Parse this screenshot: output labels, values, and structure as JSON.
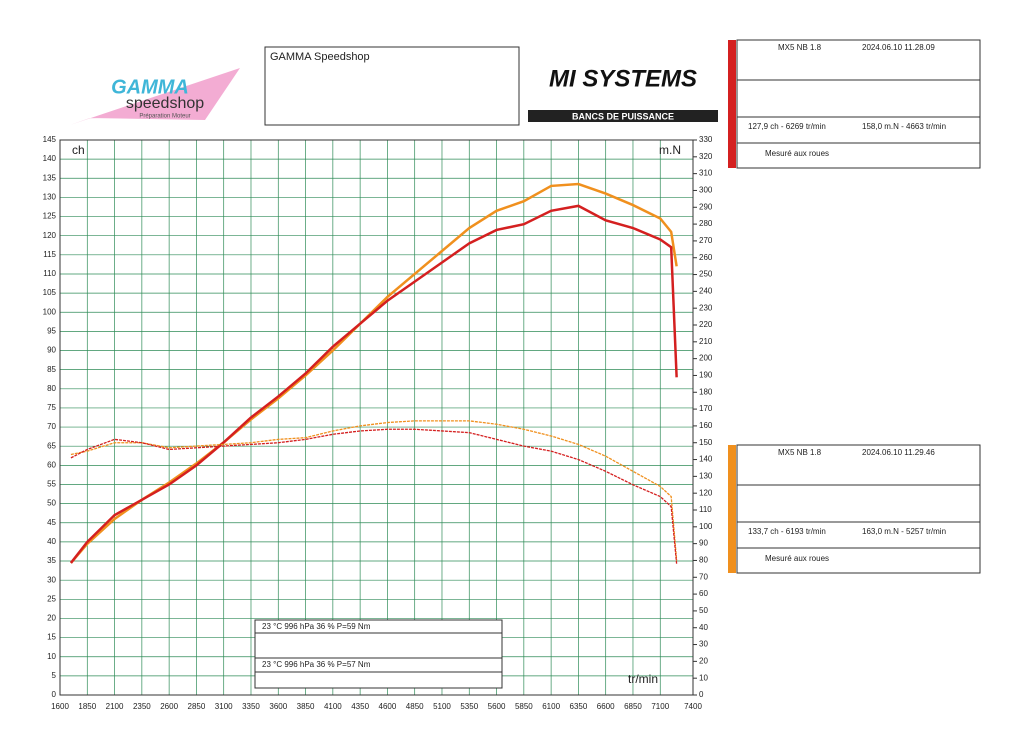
{
  "header": {
    "shop": "GAMMA Speedshop",
    "logo_left": {
      "brand": "GAMMA",
      "sub": "speedshop",
      "tagline": "Préparation Moteur"
    },
    "logo_right": {
      "brand": "MI SYSTEMS",
      "tagline": "BANCS DE PUISSANCE"
    }
  },
  "runs": [
    {
      "vehicle": "MX5 NB 1.8",
      "date": "2024.06.10 11.28.09",
      "power": "127,9 ch - 6269 tr/min",
      "torque": "158,0 m.N - 4663 tr/min",
      "note": "Mesuré aux roues",
      "color": "#d42020"
    },
    {
      "vehicle": "MX5 NB 1.8",
      "date": "2024.06.10 11.29.46",
      "power": "133,7 ch - 6193 tr/min",
      "torque": "163,0 m.N - 5257 tr/min",
      "note": "Mesuré aux roues",
      "color": "#f0901e"
    }
  ],
  "conditions": [
    "23 °C   996 hPa   36 %      P=59 Nm",
    "23 °C   996 hPa   36 %      P=57 Nm"
  ],
  "chart_data": {
    "type": "line",
    "y_label": "ch",
    "y2_label": "m.N",
    "x_label": "tr/min",
    "grid": true,
    "x": [
      1700,
      1850,
      2100,
      2350,
      2600,
      2850,
      3100,
      3350,
      3600,
      3850,
      4100,
      4350,
      4600,
      4850,
      5100,
      5350,
      5600,
      5850,
      6100,
      6350,
      6600,
      6850,
      7100,
      7200,
      7250
    ],
    "series": [
      {
        "color": "#f0901e",
        "values": [
          34.5,
          39.5,
          46,
          51,
          55.5,
          60.5,
          66,
          72,
          77.5,
          83.5,
          90,
          97,
          104,
          110,
          116,
          122,
          126.5,
          129,
          133,
          133.5,
          131,
          128,
          124.5,
          121,
          112
        ]
      },
      {
        "color": "#d42020",
        "values": [
          34.5,
          40,
          47,
          51,
          55,
          60,
          66,
          72.5,
          78,
          84,
          91,
          97,
          103,
          108,
          113,
          118,
          121.5,
          123,
          126.5,
          127.8,
          124,
          122,
          119,
          117,
          83
        ]
      },
      {
        "color": "#f0901e",
        "axis": "y2",
        "values": [
          143,
          145,
          150,
          150,
          147,
          148,
          149,
          150,
          152,
          153,
          157,
          160,
          162,
          163,
          163,
          163,
          161,
          158,
          154,
          149,
          142,
          133,
          124,
          118,
          80
        ]
      },
      {
        "color": "#d42020",
        "axis": "y2",
        "values": [
          141,
          146,
          152,
          150,
          146,
          147,
          148,
          149,
          150,
          152,
          155,
          157,
          158,
          158,
          157,
          156,
          152,
          148,
          145,
          140,
          133,
          125,
          118,
          112,
          78
        ]
      }
    ],
    "xlim": [
      1600,
      7400
    ],
    "xticks": [
      1600,
      1850,
      2100,
      2350,
      2600,
      2850,
      3100,
      3350,
      3600,
      3850,
      4100,
      4350,
      4600,
      4850,
      5100,
      5350,
      5600,
      5850,
      6100,
      6350,
      6600,
      6850,
      7100,
      7400
    ],
    "ylim": [
      0,
      145
    ],
    "yticks": [
      0,
      5,
      10,
      15,
      20,
      25,
      30,
      35,
      40,
      45,
      50,
      55,
      60,
      65,
      70,
      75,
      80,
      85,
      90,
      95,
      100,
      105,
      110,
      115,
      120,
      125,
      130,
      135,
      140,
      145
    ],
    "y2lim": [
      0,
      330
    ],
    "y2ticks": [
      0,
      10,
      20,
      30,
      40,
      50,
      60,
      70,
      80,
      90,
      100,
      110,
      120,
      130,
      140,
      150,
      160,
      170,
      180,
      190,
      200,
      210,
      220,
      230,
      240,
      250,
      260,
      270,
      280,
      290,
      300,
      310,
      320,
      330
    ]
  }
}
